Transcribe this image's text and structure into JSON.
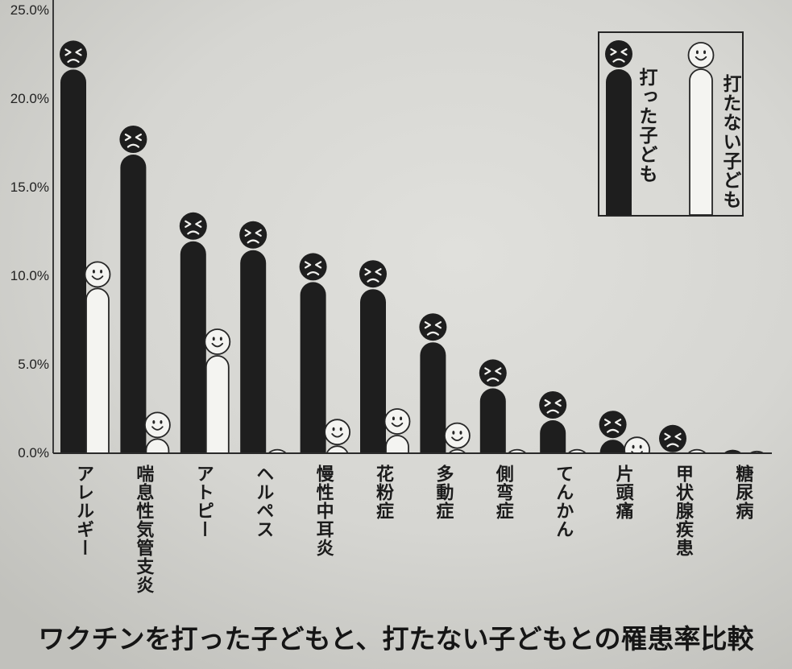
{
  "chart_data": {
    "type": "bar",
    "title": "ワクチンを打った子どもと、打たない子どもとの罹患率比較",
    "xlabel": "",
    "ylabel": "",
    "categories": [
      "アレルギー",
      "喘息性気管支炎",
      "アトピー",
      "ヘルペス",
      "慢性中耳炎",
      "花粉症",
      "多動症",
      "側弯症",
      "てんかん",
      "片頭痛",
      "甲状腺疾患",
      "糖尿病"
    ],
    "series": [
      {
        "name": "打った子ども",
        "values": [
          23.3,
          18.5,
          13.6,
          13.1,
          11.3,
          10.9,
          7.9,
          5.3,
          3.5,
          2.4,
          1.6,
          0.2
        ],
        "color": "#1e1e1e",
        "icon": "frown-face-icon"
      },
      {
        "name": "打たない子ども",
        "values": [
          10.8,
          2.3,
          7.0,
          0.2,
          1.9,
          2.5,
          1.7,
          0.2,
          0.2,
          0.9,
          0.2,
          0.1
        ],
        "color": "#f4f4f1",
        "icon": "smile-face-icon"
      }
    ],
    "ylim": [
      0,
      25
    ],
    "y_ticks": [
      0,
      5,
      10,
      15,
      20,
      25
    ],
    "y_tick_labels": [
      "0.0%",
      "5.0%",
      "10.0%",
      "15.0%",
      "20.0%",
      "25.0%"
    ],
    "grid": false,
    "legend_position": "top-right"
  },
  "colors": {
    "paper": "#d6d6d2",
    "ink": "#262626",
    "face_line_on_dark": "#f1f1ee"
  }
}
